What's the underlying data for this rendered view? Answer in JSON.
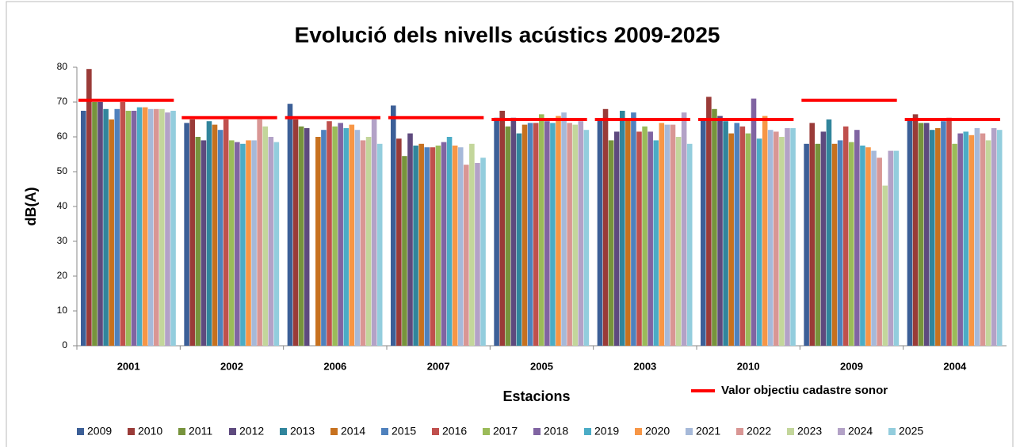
{
  "chart_data": {
    "type": "bar",
    "title": "Evolució dels nivells acústics 2009-2025",
    "x_label": "Estacions",
    "y_label": "dB(A)",
    "categories": [
      "2001",
      "2002",
      "2006",
      "2007",
      "2005",
      "2003",
      "2010",
      "2009",
      "2004"
    ],
    "ylim": [
      0,
      80
    ],
    "yticks": [
      0,
      10,
      20,
      30,
      40,
      50,
      60,
      70,
      80
    ],
    "grid": false,
    "series": [
      {
        "name": "2009",
        "color": "#3c5f97",
        "values": [
          67.5,
          64,
          69.5,
          69,
          65.5,
          65,
          65,
          58,
          65
        ]
      },
      {
        "name": "2010",
        "color": "#9a3b38",
        "values": [
          79.5,
          65,
          65,
          59.5,
          67.5,
          68,
          71.5,
          64,
          66.5
        ]
      },
      {
        "name": "2011",
        "color": "#77933c",
        "values": [
          70,
          60,
          63,
          54.5,
          63,
          59,
          68,
          58,
          64
        ]
      },
      {
        "name": "2012",
        "color": "#5e4a7e",
        "values": [
          70,
          59,
          62.5,
          61,
          65.5,
          61.5,
          66,
          61.5,
          64
        ]
      },
      {
        "name": "2013",
        "color": "#31859c",
        "values": [
          68,
          64.5,
          null,
          57.5,
          61,
          67.5,
          64.5,
          65,
          62
        ]
      },
      {
        "name": "2014",
        "color": "#c7711f",
        "values": [
          65,
          63.5,
          60,
          58,
          63.5,
          65,
          61,
          58,
          62.5
        ]
      },
      {
        "name": "2015",
        "color": "#4f81bd",
        "values": [
          68,
          62,
          62,
          57,
          64,
          67,
          64,
          59,
          64.5
        ]
      },
      {
        "name": "2016",
        "color": "#c0504d",
        "values": [
          70,
          65,
          64.5,
          57,
          64,
          61.5,
          63,
          63,
          65.5
        ]
      },
      {
        "name": "2017",
        "color": "#9bbb59",
        "values": [
          67.5,
          59,
          63,
          57.5,
          66.5,
          63,
          61,
          58.5,
          58
        ]
      },
      {
        "name": "2018",
        "color": "#8064a2",
        "values": [
          67.5,
          58.5,
          64,
          58.5,
          64.5,
          61.5,
          71,
          62,
          61
        ]
      },
      {
        "name": "2019",
        "color": "#4bacc6",
        "values": [
          68.5,
          58,
          62.5,
          60,
          64,
          59,
          59.5,
          57.5,
          61.5
        ]
      },
      {
        "name": "2020",
        "color": "#f79646",
        "values": [
          68.5,
          59,
          63.5,
          57.5,
          66,
          64,
          66,
          57,
          60.5
        ]
      },
      {
        "name": "2021",
        "color": "#a6b9d9",
        "values": [
          68,
          59,
          62,
          57,
          67,
          63.5,
          62,
          56,
          62.5
        ]
      },
      {
        "name": "2022",
        "color": "#d99694",
        "values": [
          68,
          65,
          59,
          52,
          64,
          63.5,
          61.5,
          54,
          61
        ]
      },
      {
        "name": "2023",
        "color": "#c3d69b",
        "values": [
          68,
          63,
          60,
          58,
          63.5,
          60,
          60,
          46,
          59
        ]
      },
      {
        "name": "2024",
        "color": "#b3a2c7",
        "values": [
          67,
          60,
          65,
          52.5,
          64.5,
          67,
          62.5,
          56,
          62.5
        ]
      },
      {
        "name": "2025",
        "color": "#93cddd",
        "values": [
          67.5,
          58.5,
          58,
          54,
          62,
          58,
          62.5,
          56,
          62
        ]
      }
    ],
    "target": {
      "name": "Valor objectiu cadastre sonor",
      "color": "#ff0000",
      "values": [
        70.5,
        65.5,
        65.5,
        65.5,
        65,
        65,
        65,
        70.5,
        65
      ]
    }
  }
}
